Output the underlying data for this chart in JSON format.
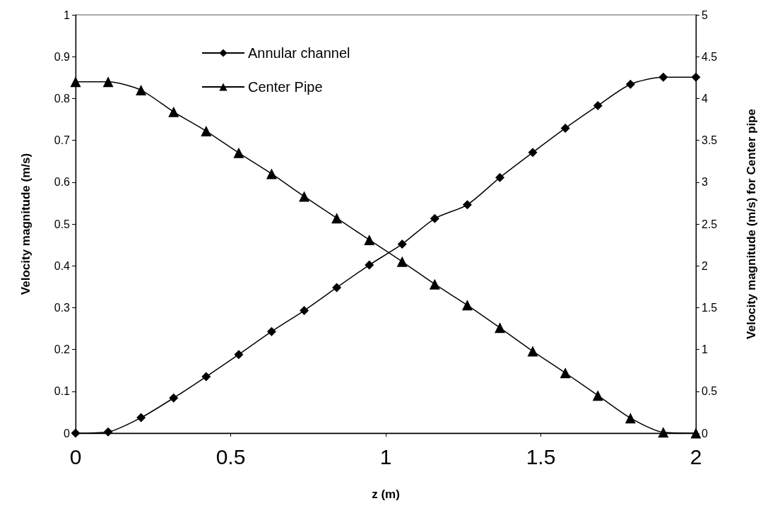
{
  "chart_data": {
    "type": "line",
    "xlabel": "z (m)",
    "ylabel": "Velocity magnitude (m/s)",
    "y2label": "Velocity magnitude (m/s) for Center pipe",
    "x": [
      0,
      0.105,
      0.211,
      0.316,
      0.421,
      0.526,
      0.632,
      0.737,
      0.842,
      0.947,
      1.053,
      1.158,
      1.263,
      1.368,
      1.474,
      1.579,
      1.684,
      1.789,
      1.895,
      2.0
    ],
    "series": [
      {
        "name": "Annular channel",
        "color": "#000000",
        "marker": "diamond",
        "values": [
          0,
          0.003,
          0.037,
          0.084,
          0.135,
          0.188,
          0.243,
          0.293,
          0.348,
          0.402,
          0.452,
          0.513,
          0.546,
          0.611,
          0.671,
          0.729,
          0.783,
          0.834,
          0.851,
          0.851
        ]
      },
      {
        "name": "Center Pipe",
        "color": "#000000",
        "marker": "triangle",
        "axis": "y2",
        "values": [
          4.2,
          4.2,
          4.1,
          3.84,
          3.61,
          3.35,
          3.1,
          2.83,
          2.57,
          2.31,
          2.05,
          1.78,
          1.53,
          1.26,
          0.98,
          0.72,
          0.45,
          0.18,
          0.01,
          0
        ]
      }
    ],
    "xlim": [
      0,
      2
    ],
    "xticks": [
      0,
      0.5,
      1,
      1.5,
      2
    ],
    "ylim": [
      0,
      1
    ],
    "yticks": [
      0,
      0.1,
      0.2,
      0.3,
      0.4,
      0.5,
      0.6,
      0.7,
      0.8,
      0.9,
      1
    ],
    "y2lim": [
      0,
      5
    ],
    "y2ticks": [
      0,
      0.5,
      1,
      1.5,
      2,
      2.5,
      3,
      3.5,
      4,
      4.5,
      5
    ],
    "legend": "top",
    "grid": false,
    "line_style": "solid"
  }
}
